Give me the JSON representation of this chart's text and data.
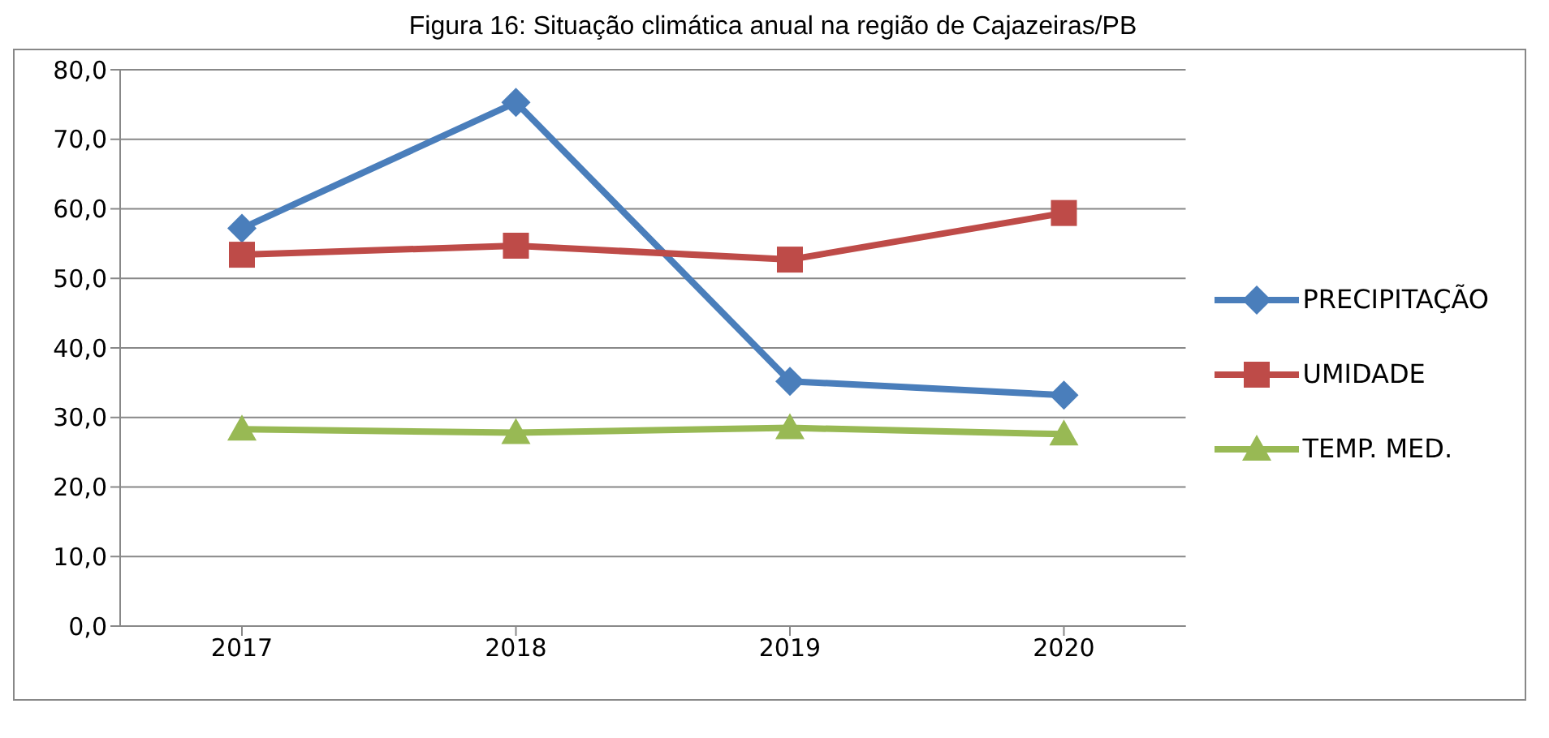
{
  "chart_data": {
    "type": "line",
    "title": "Figura 16: Situação climática anual na região de Cajazeiras/PB",
    "categories": [
      "2017",
      "2018",
      "2019",
      "2020"
    ],
    "series": [
      {
        "name": "PRECIPITAÇÃO",
        "color": "#4a7ebb",
        "marker": "diamond",
        "values": [
          57.2,
          75.3,
          35.2,
          33.2
        ]
      },
      {
        "name": "UMIDADE",
        "color": "#be4b48",
        "marker": "square",
        "values": [
          53.4,
          54.7,
          52.7,
          59.4
        ]
      },
      {
        "name": "TEMP. MED.",
        "color": "#98b954",
        "marker": "triangle",
        "values": [
          28.3,
          27.8,
          28.5,
          27.6
        ]
      }
    ],
    "ylim": [
      0,
      80
    ],
    "yticks": [
      {
        "value": 0,
        "label": "0,0"
      },
      {
        "value": 10,
        "label": "10,0"
      },
      {
        "value": 20,
        "label": "20,0"
      },
      {
        "value": 30,
        "label": "30,0"
      },
      {
        "value": 40,
        "label": "40,0"
      },
      {
        "value": 50,
        "label": "50,0"
      },
      {
        "value": 60,
        "label": "60,0"
      },
      {
        "value": 70,
        "label": "70,0"
      },
      {
        "value": 80,
        "label": "80,0"
      }
    ],
    "grid": "y",
    "legend": "right",
    "line_style": "solid"
  }
}
